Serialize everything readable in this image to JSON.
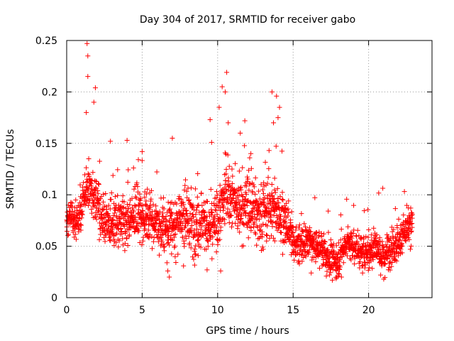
{
  "chart_data": {
    "type": "scatter",
    "title": "Day 304 of 2017, SRMTID for receiver gabo",
    "xlabel": "GPS time / hours",
    "ylabel": "SRMTID / TECUs",
    "xlim": [
      0,
      24.2
    ],
    "ylim": [
      0,
      0.25
    ],
    "x_ticks": [
      0,
      5,
      10,
      15,
      20
    ],
    "x_tick_labels": [
      "0",
      "5",
      "10",
      "15",
      "20"
    ],
    "y_ticks": [
      0,
      0.05,
      0.1,
      0.15,
      0.2,
      0.25
    ],
    "y_tick_labels": [
      "0",
      "0.05",
      "0.1",
      "0.15",
      "0.2",
      "0.25"
    ],
    "grid": true,
    "marker": "+",
    "marker_color": "#ff0000",
    "series": [
      {
        "name": "SRMTID",
        "trend": [
          [
            0.0,
            0.075
          ],
          [
            0.3,
            0.085
          ],
          [
            0.6,
            0.07
          ],
          [
            1.0,
            0.085
          ],
          [
            1.3,
            0.11
          ],
          [
            1.6,
            0.105
          ],
          [
            2.0,
            0.09
          ],
          [
            2.5,
            0.075
          ],
          [
            3.0,
            0.07
          ],
          [
            3.5,
            0.07
          ],
          [
            4.0,
            0.075
          ],
          [
            4.5,
            0.08
          ],
          [
            5.0,
            0.08
          ],
          [
            5.5,
            0.08
          ],
          [
            6.0,
            0.07
          ],
          [
            6.5,
            0.065
          ],
          [
            7.0,
            0.07
          ],
          [
            7.5,
            0.075
          ],
          [
            8.0,
            0.075
          ],
          [
            8.5,
            0.07
          ],
          [
            9.0,
            0.075
          ],
          [
            9.5,
            0.065
          ],
          [
            10.0,
            0.075
          ],
          [
            10.5,
            0.1
          ],
          [
            11.0,
            0.095
          ],
          [
            11.5,
            0.085
          ],
          [
            12.0,
            0.09
          ],
          [
            12.5,
            0.085
          ],
          [
            13.0,
            0.08
          ],
          [
            13.5,
            0.09
          ],
          [
            14.0,
            0.085
          ],
          [
            14.5,
            0.075
          ],
          [
            15.0,
            0.055
          ],
          [
            15.5,
            0.05
          ],
          [
            16.0,
            0.055
          ],
          [
            16.5,
            0.05
          ],
          [
            17.0,
            0.045
          ],
          [
            17.5,
            0.035
          ],
          [
            18.0,
            0.035
          ],
          [
            18.5,
            0.055
          ],
          [
            19.0,
            0.05
          ],
          [
            19.5,
            0.045
          ],
          [
            20.0,
            0.045
          ],
          [
            20.5,
            0.05
          ],
          [
            21.0,
            0.04
          ],
          [
            21.5,
            0.05
          ],
          [
            22.0,
            0.055
          ],
          [
            22.5,
            0.065
          ],
          [
            22.9,
            0.07
          ]
        ],
        "spread": [
          [
            0.0,
            0.012
          ],
          [
            4.0,
            0.018
          ],
          [
            7.0,
            0.02
          ],
          [
            10.0,
            0.02
          ],
          [
            12.0,
            0.022
          ],
          [
            14.5,
            0.02
          ],
          [
            15.0,
            0.012
          ],
          [
            18.0,
            0.01
          ],
          [
            21.0,
            0.012
          ],
          [
            22.9,
            0.014
          ]
        ],
        "peaks": [
          [
            1.35,
            0.247
          ],
          [
            1.4,
            0.235
          ],
          [
            1.4,
            0.215
          ],
          [
            1.9,
            0.204
          ],
          [
            1.3,
            0.18
          ],
          [
            1.8,
            0.19
          ],
          [
            2.9,
            0.152
          ],
          [
            4.0,
            0.153
          ],
          [
            5.0,
            0.142
          ],
          [
            7.0,
            0.155
          ],
          [
            9.5,
            0.173
          ],
          [
            10.3,
            0.205
          ],
          [
            10.6,
            0.219
          ],
          [
            10.5,
            0.2
          ],
          [
            10.1,
            0.185
          ],
          [
            10.7,
            0.17
          ],
          [
            11.5,
            0.16
          ],
          [
            11.8,
            0.172
          ],
          [
            13.6,
            0.2
          ],
          [
            13.9,
            0.196
          ],
          [
            14.1,
            0.185
          ],
          [
            13.7,
            0.17
          ],
          [
            14.0,
            0.175
          ],
          [
            9.6,
            0.151
          ],
          [
            12.2,
            0.14
          ]
        ],
        "troughs": [
          [
            6.8,
            0.02
          ],
          [
            6.7,
            0.026
          ],
          [
            9.3,
            0.027
          ],
          [
            10.2,
            0.026
          ],
          [
            17.6,
            0.017
          ],
          [
            17.9,
            0.02
          ],
          [
            18.2,
            0.02
          ],
          [
            21.0,
            0.018
          ],
          [
            20.8,
            0.022
          ],
          [
            16.2,
            0.024
          ],
          [
            19.6,
            0.024
          ],
          [
            17.2,
            0.021
          ]
        ],
        "x_range": [
          0.0,
          22.9
        ],
        "sample_count": 2300
      }
    ]
  }
}
